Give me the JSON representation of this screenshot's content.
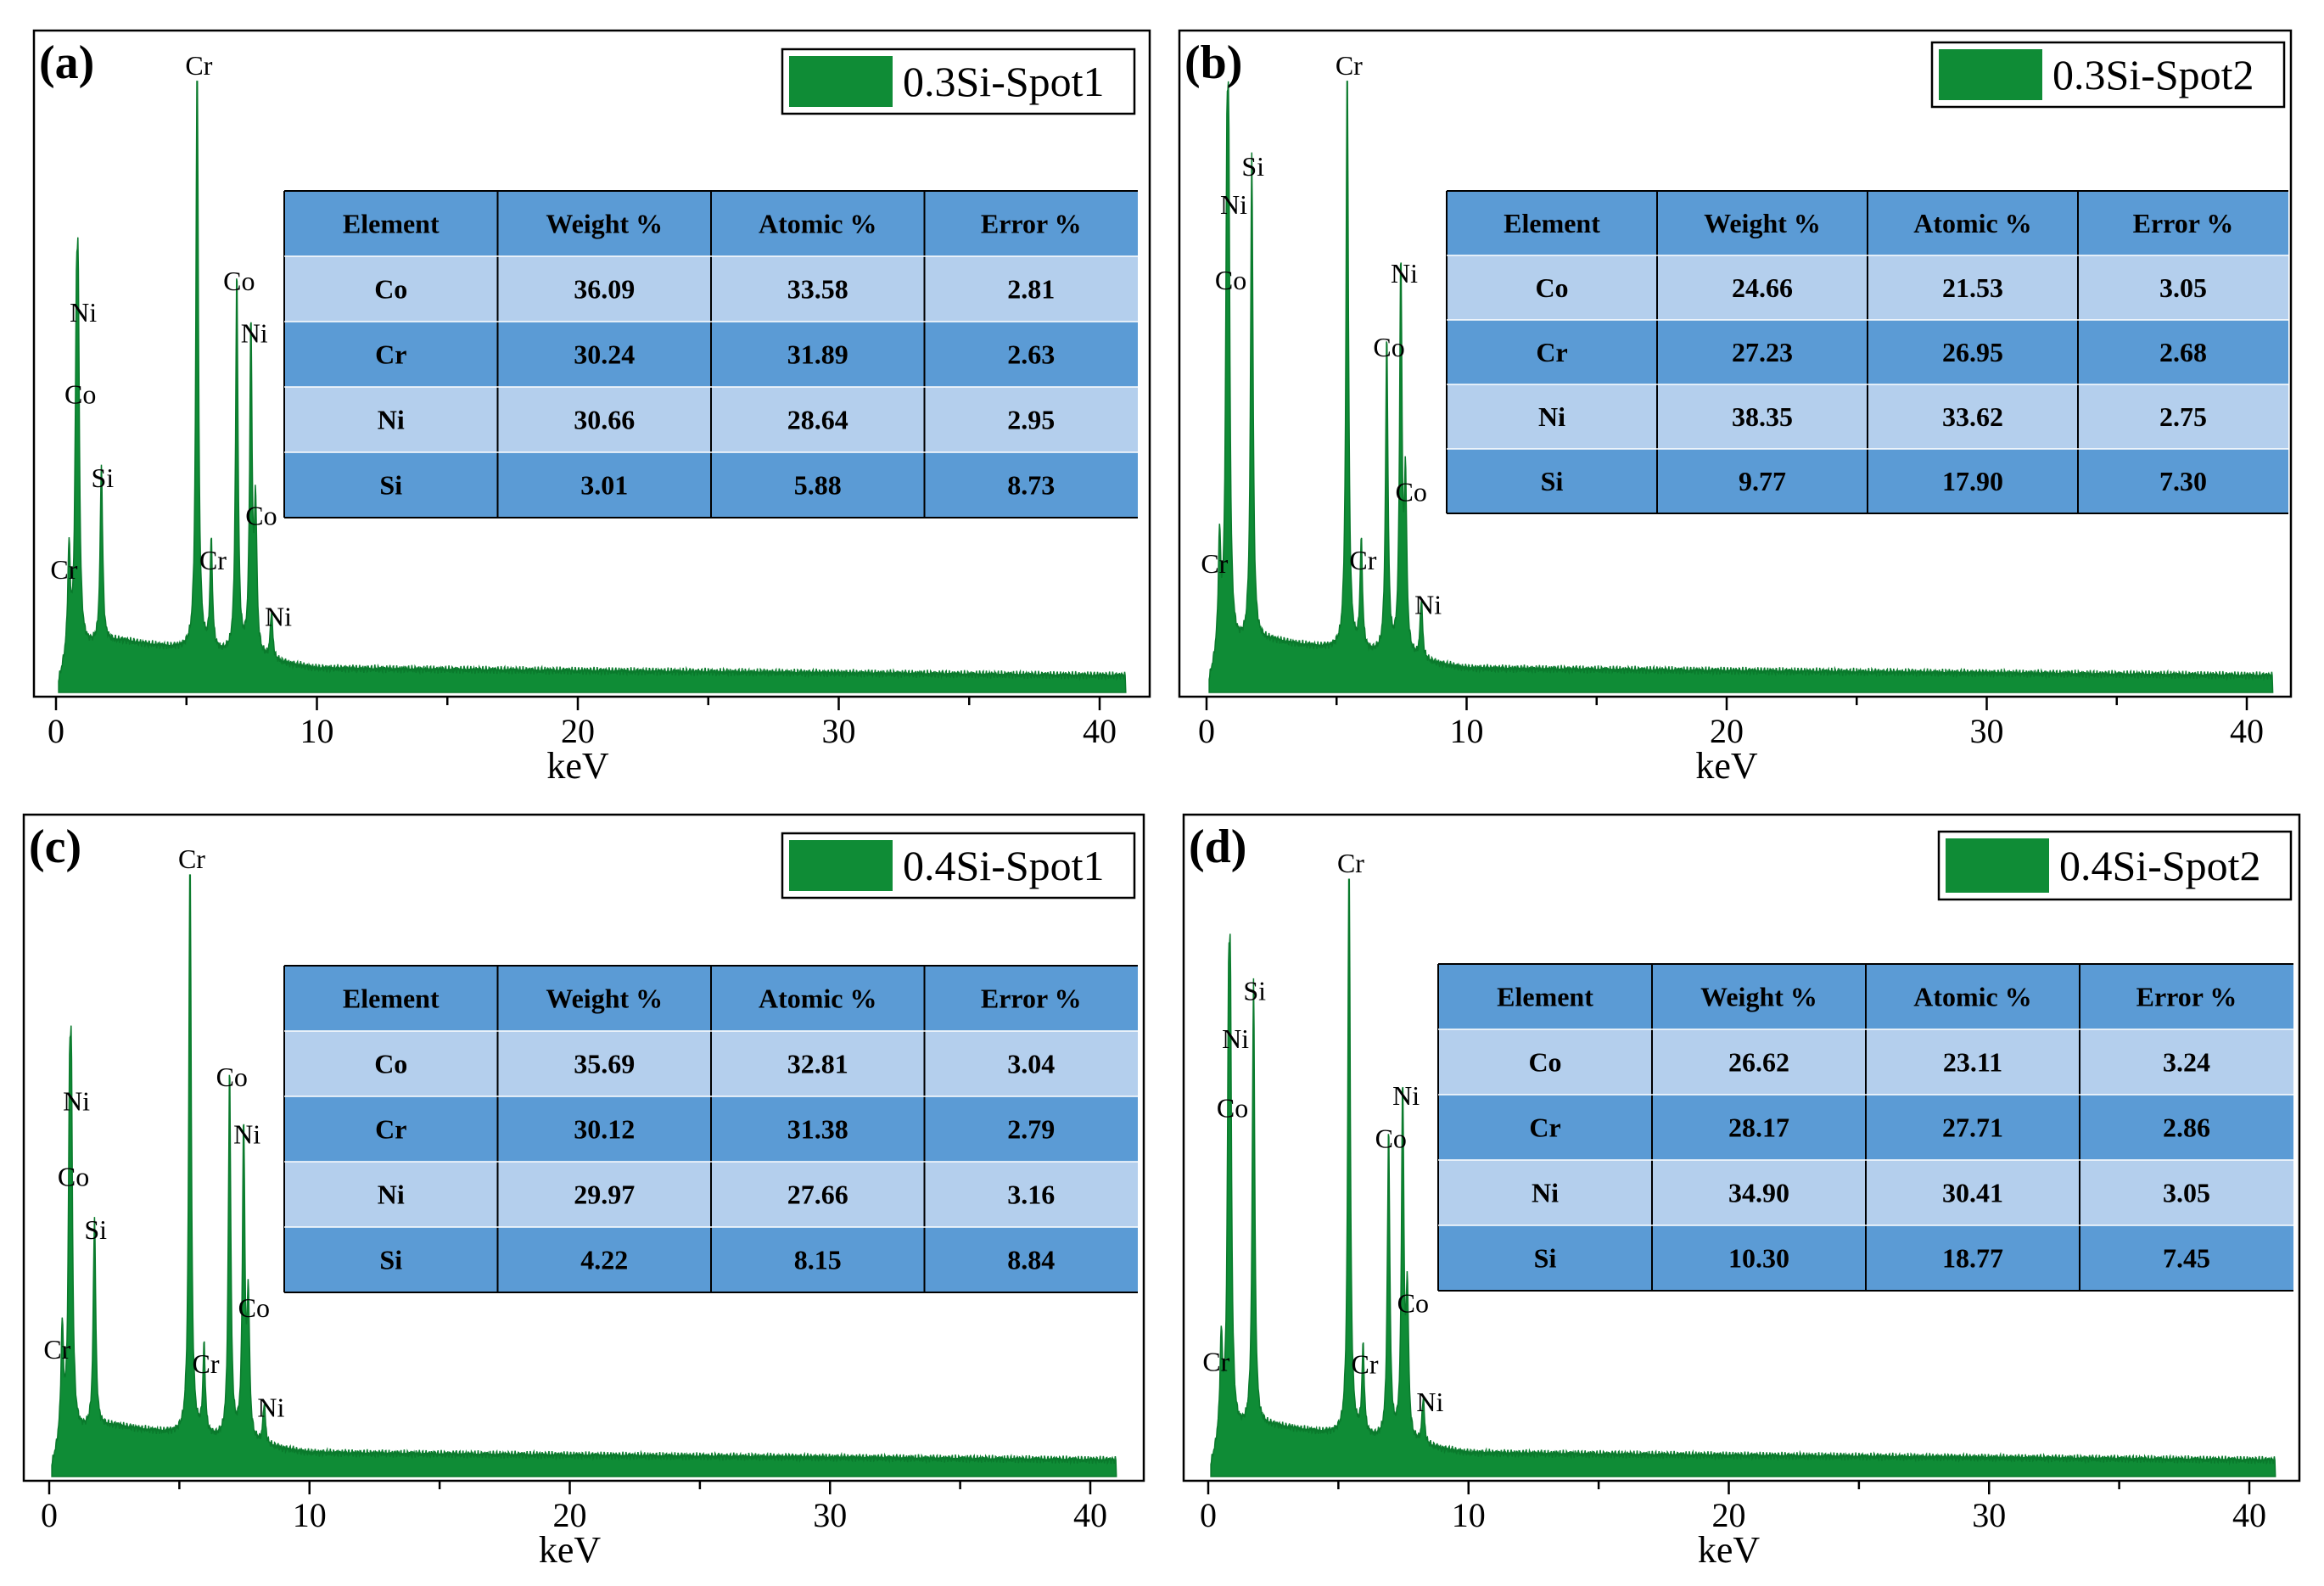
{
  "colors": {
    "spectrum": "#0f8c36",
    "header_row": "#5b9bd5",
    "light_row": "#b4cfed",
    "dark_row": "#5b9bd5"
  },
  "chart_data": [
    {
      "type": "area",
      "panel": "(a)",
      "legend": "0.3Si-Spot1",
      "xlabel": "keV",
      "xlim": [
        0,
        41
      ],
      "xticks": [
        0,
        10,
        20,
        30,
        40
      ],
      "peaks": [
        {
          "keV": 0.5,
          "height": 0.17,
          "label": "Cr"
        },
        {
          "keV": 0.78,
          "height": 0.44,
          "label": "Co"
        },
        {
          "keV": 0.85,
          "height": 0.5,
          "label": "Ni"
        },
        {
          "keV": 1.74,
          "height": 0.3,
          "label": "Si"
        },
        {
          "keV": 5.41,
          "height": 1.0,
          "label": "Cr"
        },
        {
          "keV": 5.95,
          "height": 0.18,
          "label": "Cr"
        },
        {
          "keV": 6.93,
          "height": 0.64,
          "label": "Co"
        },
        {
          "keV": 7.47,
          "height": 0.55,
          "label": "Ni"
        },
        {
          "keV": 7.65,
          "height": 0.24,
          "label": "Co"
        },
        {
          "keV": 8.26,
          "height": 0.08,
          "label": "Ni"
        }
      ],
      "table": {
        "headers": [
          "Element",
          "Weight %",
          "Atomic %",
          "Error %"
        ],
        "rows": [
          [
            "Co",
            "36.09",
            "33.58",
            "2.81"
          ],
          [
            "Cr",
            "30.24",
            "31.89",
            "2.63"
          ],
          [
            "Ni",
            "30.66",
            "28.64",
            "2.95"
          ],
          [
            "Si",
            "3.01",
            "5.88",
            "8.73"
          ]
        ]
      }
    },
    {
      "type": "area",
      "panel": "(b)",
      "legend": "0.3Si-Spot2",
      "xlabel": "keV",
      "xlim": [
        0,
        41
      ],
      "xticks": [
        0,
        10,
        20,
        30,
        40
      ],
      "peaks": [
        {
          "keV": 0.5,
          "height": 0.18,
          "label": "Cr"
        },
        {
          "keV": 0.78,
          "height": 0.63,
          "label": "Co"
        },
        {
          "keV": 0.85,
          "height": 0.68,
          "label": "Ni"
        },
        {
          "keV": 1.74,
          "height": 0.82,
          "label": "Si"
        },
        {
          "keV": 5.41,
          "height": 1.0,
          "label": "Cr"
        },
        {
          "keV": 5.95,
          "height": 0.18,
          "label": "Cr"
        },
        {
          "keV": 6.93,
          "height": 0.53,
          "label": "Co"
        },
        {
          "keV": 7.47,
          "height": 0.65,
          "label": "Ni"
        },
        {
          "keV": 7.65,
          "height": 0.28,
          "label": "Co"
        },
        {
          "keV": 8.26,
          "height": 0.1,
          "label": "Ni"
        }
      ],
      "table": {
        "headers": [
          "Element",
          "Weight %",
          "Atomic %",
          "Error %"
        ],
        "rows": [
          [
            "Co",
            "24.66",
            "21.53",
            "3.05"
          ],
          [
            "Cr",
            "27.23",
            "26.95",
            "2.68"
          ],
          [
            "Ni",
            "38.35",
            "33.62",
            "2.75"
          ],
          [
            "Si",
            "9.77",
            "17.90",
            "7.30"
          ]
        ]
      }
    },
    {
      "type": "area",
      "panel": "(c)",
      "legend": "0.4Si-Spot1",
      "xlabel": "keV",
      "xlim": [
        0,
        41
      ],
      "xticks": [
        0,
        10,
        20,
        30,
        40
      ],
      "peaks": [
        {
          "keV": 0.5,
          "height": 0.18,
          "label": "Cr"
        },
        {
          "keV": 0.78,
          "height": 0.45,
          "label": "Co"
        },
        {
          "keV": 0.85,
          "height": 0.5,
          "label": "Ni"
        },
        {
          "keV": 1.74,
          "height": 0.36,
          "label": "Si"
        },
        {
          "keV": 5.41,
          "height": 1.0,
          "label": "Cr"
        },
        {
          "keV": 5.95,
          "height": 0.15,
          "label": "Cr"
        },
        {
          "keV": 6.93,
          "height": 0.63,
          "label": "Co"
        },
        {
          "keV": 7.47,
          "height": 0.53,
          "label": "Ni"
        },
        {
          "keV": 7.65,
          "height": 0.23,
          "label": "Co"
        },
        {
          "keV": 8.26,
          "height": 0.07,
          "label": "Ni"
        }
      ],
      "table": {
        "headers": [
          "Element",
          "Weight %",
          "Atomic %",
          "Error %"
        ],
        "rows": [
          [
            "Co",
            "35.69",
            "32.81",
            "3.04"
          ],
          [
            "Cr",
            "30.12",
            "31.38",
            "2.79"
          ],
          [
            "Ni",
            "29.97",
            "27.66",
            "3.16"
          ],
          [
            "Si",
            "4.22",
            "8.15",
            "8.84"
          ]
        ]
      }
    },
    {
      "type": "area",
      "panel": "(d)",
      "legend": "0.4Si-Spot2",
      "xlabel": "keV",
      "xlim": [
        0,
        41
      ],
      "xticks": [
        0,
        10,
        20,
        30,
        40
      ],
      "peaks": [
        {
          "keV": 0.5,
          "height": 0.16,
          "label": "Cr"
        },
        {
          "keV": 0.78,
          "height": 0.57,
          "label": "Co"
        },
        {
          "keV": 0.85,
          "height": 0.61,
          "label": "Ni"
        },
        {
          "keV": 1.74,
          "height": 0.77,
          "label": "Si"
        },
        {
          "keV": 5.41,
          "height": 1.0,
          "label": "Cr"
        },
        {
          "keV": 5.95,
          "height": 0.15,
          "label": "Cr"
        },
        {
          "keV": 6.93,
          "height": 0.53,
          "label": "Co"
        },
        {
          "keV": 7.47,
          "height": 0.6,
          "label": "Ni"
        },
        {
          "keV": 7.65,
          "height": 0.24,
          "label": "Co"
        },
        {
          "keV": 8.26,
          "height": 0.08,
          "label": "Ni"
        }
      ],
      "table": {
        "headers": [
          "Element",
          "Weight %",
          "Atomic %",
          "Error %"
        ],
        "rows": [
          [
            "Co",
            "26.62",
            "23.11",
            "3.24"
          ],
          [
            "Cr",
            "28.17",
            "27.71",
            "2.86"
          ],
          [
            "Ni",
            "34.90",
            "30.41",
            "3.05"
          ],
          [
            "Si",
            "10.30",
            "18.77",
            "7.45"
          ]
        ]
      }
    }
  ]
}
